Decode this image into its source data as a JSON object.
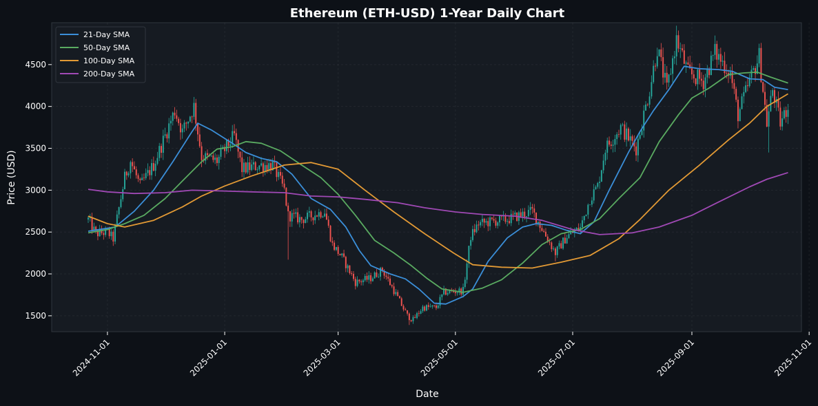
{
  "chart_data": {
    "type": "line",
    "title": "Ethereum (ETH-USD) 1-Year Daily Chart",
    "xlabel": "Date",
    "ylabel": "Price (USD)",
    "x_range": [
      "2024-10-03",
      "2025-10-28"
    ],
    "ylim": [
      1310,
      5000
    ],
    "grid": true,
    "legend_position": "top-left",
    "x_ticks": [
      "2024-11-01",
      "2025-01-01",
      "2025-03-01",
      "2025-05-01",
      "2025-07-01",
      "2025-09-01",
      "2025-11-01"
    ],
    "y_ticks": [
      1500,
      2000,
      2500,
      3000,
      3500,
      4000,
      4500
    ],
    "colors": {
      "background": "#0d1117",
      "plot_background": "#161b22",
      "candle_up": "#26a69a",
      "candle_down": "#ef5350"
    },
    "candles_close": {
      "start_date": "2024-10-22",
      "end_date": "2025-10-21",
      "keypoints": [
        [
          "2024-10-22",
          2650
        ],
        [
          "2024-10-26",
          2480
        ],
        [
          "2024-11-01",
          2500
        ],
        [
          "2024-11-04",
          2420
        ],
        [
          "2024-11-10",
          3150
        ],
        [
          "2024-11-13",
          3350
        ],
        [
          "2024-11-18",
          3050
        ],
        [
          "2024-11-25",
          3300
        ],
        [
          "2024-12-01",
          3650
        ],
        [
          "2024-12-06",
          3950
        ],
        [
          "2024-12-10",
          3700
        ],
        [
          "2024-12-16",
          4000
        ],
        [
          "2024-12-20",
          3400
        ],
        [
          "2024-12-28",
          3350
        ],
        [
          "2025-01-06",
          3650
        ],
        [
          "2025-01-10",
          3250
        ],
        [
          "2025-01-20",
          3300
        ],
        [
          "2025-01-26",
          3300
        ],
        [
          "2025-02-01",
          3000
        ],
        [
          "2025-02-03",
          2700
        ],
        [
          "2025-02-10",
          2650
        ],
        [
          "2025-02-22",
          2750
        ],
        [
          "2025-02-26",
          2350
        ],
        [
          "2025-03-03",
          2200
        ],
        [
          "2025-03-10",
          1900
        ],
        [
          "2025-03-18",
          1950
        ],
        [
          "2025-03-24",
          2050
        ],
        [
          "2025-03-30",
          1800
        ],
        [
          "2025-04-06",
          1500
        ],
        [
          "2025-04-09",
          1450
        ],
        [
          "2025-04-14",
          1600
        ],
        [
          "2025-04-21",
          1600
        ],
        [
          "2025-04-25",
          1780
        ],
        [
          "2025-05-05",
          1800
        ],
        [
          "2025-05-09",
          2450
        ],
        [
          "2025-05-13",
          2600
        ],
        [
          "2025-05-28",
          2650
        ],
        [
          "2025-06-10",
          2750
        ],
        [
          "2025-06-22",
          2250
        ],
        [
          "2025-06-28",
          2450
        ],
        [
          "2025-07-05",
          2550
        ],
        [
          "2025-07-10",
          2900
        ],
        [
          "2025-07-14",
          3050
        ],
        [
          "2025-07-18",
          3500
        ],
        [
          "2025-07-26",
          3750
        ],
        [
          "2025-08-03",
          3500
        ],
        [
          "2025-08-10",
          4200
        ],
        [
          "2025-08-14",
          4700
        ],
        [
          "2025-08-19",
          4200
        ],
        [
          "2025-08-24",
          4800
        ],
        [
          "2025-08-30",
          4400
        ],
        [
          "2025-09-07",
          4300
        ],
        [
          "2025-09-13",
          4650
        ],
        [
          "2025-09-21",
          4400
        ],
        [
          "2025-09-25",
          3900
        ],
        [
          "2025-10-01",
          4300
        ],
        [
          "2025-10-06",
          4600
        ],
        [
          "2025-10-10",
          3800
        ],
        [
          "2025-10-13",
          4200
        ],
        [
          "2025-10-17",
          3800
        ],
        [
          "2025-10-21",
          4000
        ]
      ],
      "wick_extremes": [
        [
          "2025-02-03",
          2170,
          "low"
        ],
        [
          "2025-08-24",
          4950,
          "high"
        ],
        [
          "2025-10-11",
          3450,
          "low"
        ],
        [
          "2025-04-07",
          1390,
          "low"
        ],
        [
          "2024-12-16",
          4100,
          "high"
        ],
        [
          "2025-06-22",
          2150,
          "low"
        ]
      ]
    },
    "series": [
      {
        "name": "21-Day SMA",
        "color": "#3b8fd9",
        "points": [
          [
            "2024-10-22",
            2510
          ],
          [
            "2024-11-01",
            2545
          ],
          [
            "2024-11-05",
            2560
          ],
          [
            "2024-11-15",
            2750
          ],
          [
            "2024-11-25",
            3000
          ],
          [
            "2024-12-05",
            3340
          ],
          [
            "2024-12-15",
            3700
          ],
          [
            "2024-12-18",
            3800
          ],
          [
            "2024-12-25",
            3720
          ],
          [
            "2025-01-05",
            3560
          ],
          [
            "2025-01-12",
            3450
          ],
          [
            "2025-01-20",
            3380
          ],
          [
            "2025-01-28",
            3340
          ],
          [
            "2025-02-05",
            3190
          ],
          [
            "2025-02-15",
            2900
          ],
          [
            "2025-02-25",
            2770
          ],
          [
            "2025-03-05",
            2560
          ],
          [
            "2025-03-12",
            2280
          ],
          [
            "2025-03-18",
            2100
          ],
          [
            "2025-03-28",
            2000
          ],
          [
            "2025-04-05",
            1940
          ],
          [
            "2025-04-12",
            1820
          ],
          [
            "2025-04-20",
            1650
          ],
          [
            "2025-04-26",
            1640
          ],
          [
            "2025-05-05",
            1730
          ],
          [
            "2025-05-10",
            1820
          ],
          [
            "2025-05-18",
            2150
          ],
          [
            "2025-05-28",
            2430
          ],
          [
            "2025-06-05",
            2560
          ],
          [
            "2025-06-12",
            2600
          ],
          [
            "2025-06-20",
            2580
          ],
          [
            "2025-06-28",
            2520
          ],
          [
            "2025-07-05",
            2480
          ],
          [
            "2025-07-12",
            2620
          ],
          [
            "2025-07-20",
            3000
          ],
          [
            "2025-07-30",
            3450
          ],
          [
            "2025-08-05",
            3700
          ],
          [
            "2025-08-12",
            3950
          ],
          [
            "2025-08-20",
            4200
          ],
          [
            "2025-08-28",
            4480
          ],
          [
            "2025-09-05",
            4450
          ],
          [
            "2025-09-15",
            4440
          ],
          [
            "2025-09-22",
            4420
          ],
          [
            "2025-10-01",
            4330
          ],
          [
            "2025-10-08",
            4320
          ],
          [
            "2025-10-14",
            4230
          ],
          [
            "2025-10-21",
            4200
          ]
        ]
      },
      {
        "name": "50-Day SMA",
        "color": "#5aab61",
        "points": [
          [
            "2024-10-22",
            2490
          ],
          [
            "2024-11-01",
            2530
          ],
          [
            "2024-11-10",
            2600
          ],
          [
            "2024-11-20",
            2700
          ],
          [
            "2024-12-01",
            2900
          ],
          [
            "2024-12-10",
            3110
          ],
          [
            "2024-12-20",
            3340
          ],
          [
            "2024-12-28",
            3490
          ],
          [
            "2025-01-05",
            3520
          ],
          [
            "2025-01-12",
            3580
          ],
          [
            "2025-01-20",
            3560
          ],
          [
            "2025-01-30",
            3470
          ],
          [
            "2025-02-10",
            3300
          ],
          [
            "2025-02-20",
            3150
          ],
          [
            "2025-03-01",
            2950
          ],
          [
            "2025-03-10",
            2700
          ],
          [
            "2025-03-20",
            2400
          ],
          [
            "2025-03-30",
            2250
          ],
          [
            "2025-04-08",
            2100
          ],
          [
            "2025-04-16",
            1950
          ],
          [
            "2025-04-24",
            1820
          ],
          [
            "2025-05-05",
            1780
          ],
          [
            "2025-05-15",
            1830
          ],
          [
            "2025-05-25",
            1930
          ],
          [
            "2025-06-05",
            2130
          ],
          [
            "2025-06-15",
            2350
          ],
          [
            "2025-06-25",
            2480
          ],
          [
            "2025-07-05",
            2530
          ],
          [
            "2025-07-15",
            2660
          ],
          [
            "2025-07-25",
            2900
          ],
          [
            "2025-08-05",
            3150
          ],
          [
            "2025-08-15",
            3580
          ],
          [
            "2025-08-25",
            3900
          ],
          [
            "2025-09-01",
            4100
          ],
          [
            "2025-09-10",
            4220
          ],
          [
            "2025-09-20",
            4380
          ],
          [
            "2025-09-28",
            4400
          ],
          [
            "2025-10-05",
            4410
          ],
          [
            "2025-10-12",
            4350
          ],
          [
            "2025-10-21",
            4280
          ]
        ]
      },
      {
        "name": "100-Day SMA",
        "color": "#e39a35",
        "points": [
          [
            "2024-10-22",
            2690
          ],
          [
            "2024-11-01",
            2600
          ],
          [
            "2024-11-10",
            2560
          ],
          [
            "2024-11-25",
            2640
          ],
          [
            "2024-12-10",
            2800
          ],
          [
            "2024-12-20",
            2930
          ],
          [
            "2025-01-01",
            3050
          ],
          [
            "2025-01-15",
            3170
          ],
          [
            "2025-02-01",
            3300
          ],
          [
            "2025-02-15",
            3330
          ],
          [
            "2025-03-01",
            3250
          ],
          [
            "2025-03-15",
            3000
          ],
          [
            "2025-03-30",
            2740
          ],
          [
            "2025-04-15",
            2480
          ],
          [
            "2025-04-30",
            2250
          ],
          [
            "2025-05-10",
            2110
          ],
          [
            "2025-05-25",
            2080
          ],
          [
            "2025-06-10",
            2070
          ],
          [
            "2025-06-25",
            2140
          ],
          [
            "2025-07-10",
            2220
          ],
          [
            "2025-07-25",
            2420
          ],
          [
            "2025-08-05",
            2650
          ],
          [
            "2025-08-20",
            3000
          ],
          [
            "2025-09-05",
            3300
          ],
          [
            "2025-09-20",
            3600
          ],
          [
            "2025-10-01",
            3800
          ],
          [
            "2025-10-10",
            4000
          ],
          [
            "2025-10-21",
            4150
          ]
        ]
      },
      {
        "name": "200-Day SMA",
        "color": "#a049b5",
        "points": [
          [
            "2024-10-22",
            3010
          ],
          [
            "2024-11-01",
            2980
          ],
          [
            "2024-11-15",
            2960
          ],
          [
            "2024-12-01",
            2970
          ],
          [
            "2024-12-15",
            3000
          ],
          [
            "2025-01-01",
            2990
          ],
          [
            "2025-01-15",
            2980
          ],
          [
            "2025-02-01",
            2970
          ],
          [
            "2025-02-15",
            2930
          ],
          [
            "2025-03-01",
            2920
          ],
          [
            "2025-03-15",
            2890
          ],
          [
            "2025-04-01",
            2850
          ],
          [
            "2025-04-15",
            2790
          ],
          [
            "2025-05-01",
            2740
          ],
          [
            "2025-05-15",
            2710
          ],
          [
            "2025-06-01",
            2690
          ],
          [
            "2025-06-15",
            2640
          ],
          [
            "2025-07-01",
            2530
          ],
          [
            "2025-07-15",
            2470
          ],
          [
            "2025-08-01",
            2490
          ],
          [
            "2025-08-15",
            2560
          ],
          [
            "2025-09-01",
            2700
          ],
          [
            "2025-09-15",
            2860
          ],
          [
            "2025-10-01",
            3040
          ],
          [
            "2025-10-10",
            3130
          ],
          [
            "2025-10-21",
            3210
          ]
        ]
      }
    ]
  }
}
